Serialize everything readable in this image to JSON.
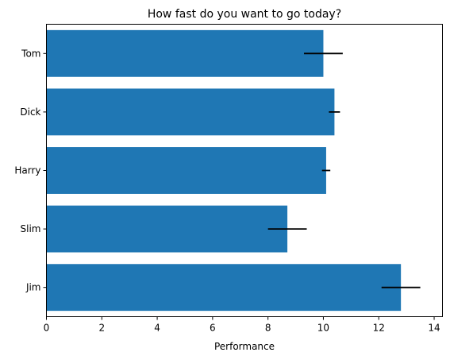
{
  "chart_data": {
    "type": "bar",
    "orientation": "horizontal",
    "title": "How fast do you want to go today?",
    "xlabel": "Performance",
    "ylabel": "",
    "categories": [
      "Tom",
      "Dick",
      "Harry",
      "Slim",
      "Jim"
    ],
    "values": [
      10.0,
      10.4,
      10.1,
      8.7,
      12.8
    ],
    "errors": [
      0.7,
      0.2,
      0.15,
      0.7,
      0.7
    ],
    "xlim": [
      0,
      14.3
    ],
    "xticks": [
      0,
      2,
      4,
      6,
      8,
      10,
      12,
      14
    ],
    "grid": false,
    "legend": "none",
    "bar_color": "#1f77b4",
    "error_color": "#000000"
  }
}
